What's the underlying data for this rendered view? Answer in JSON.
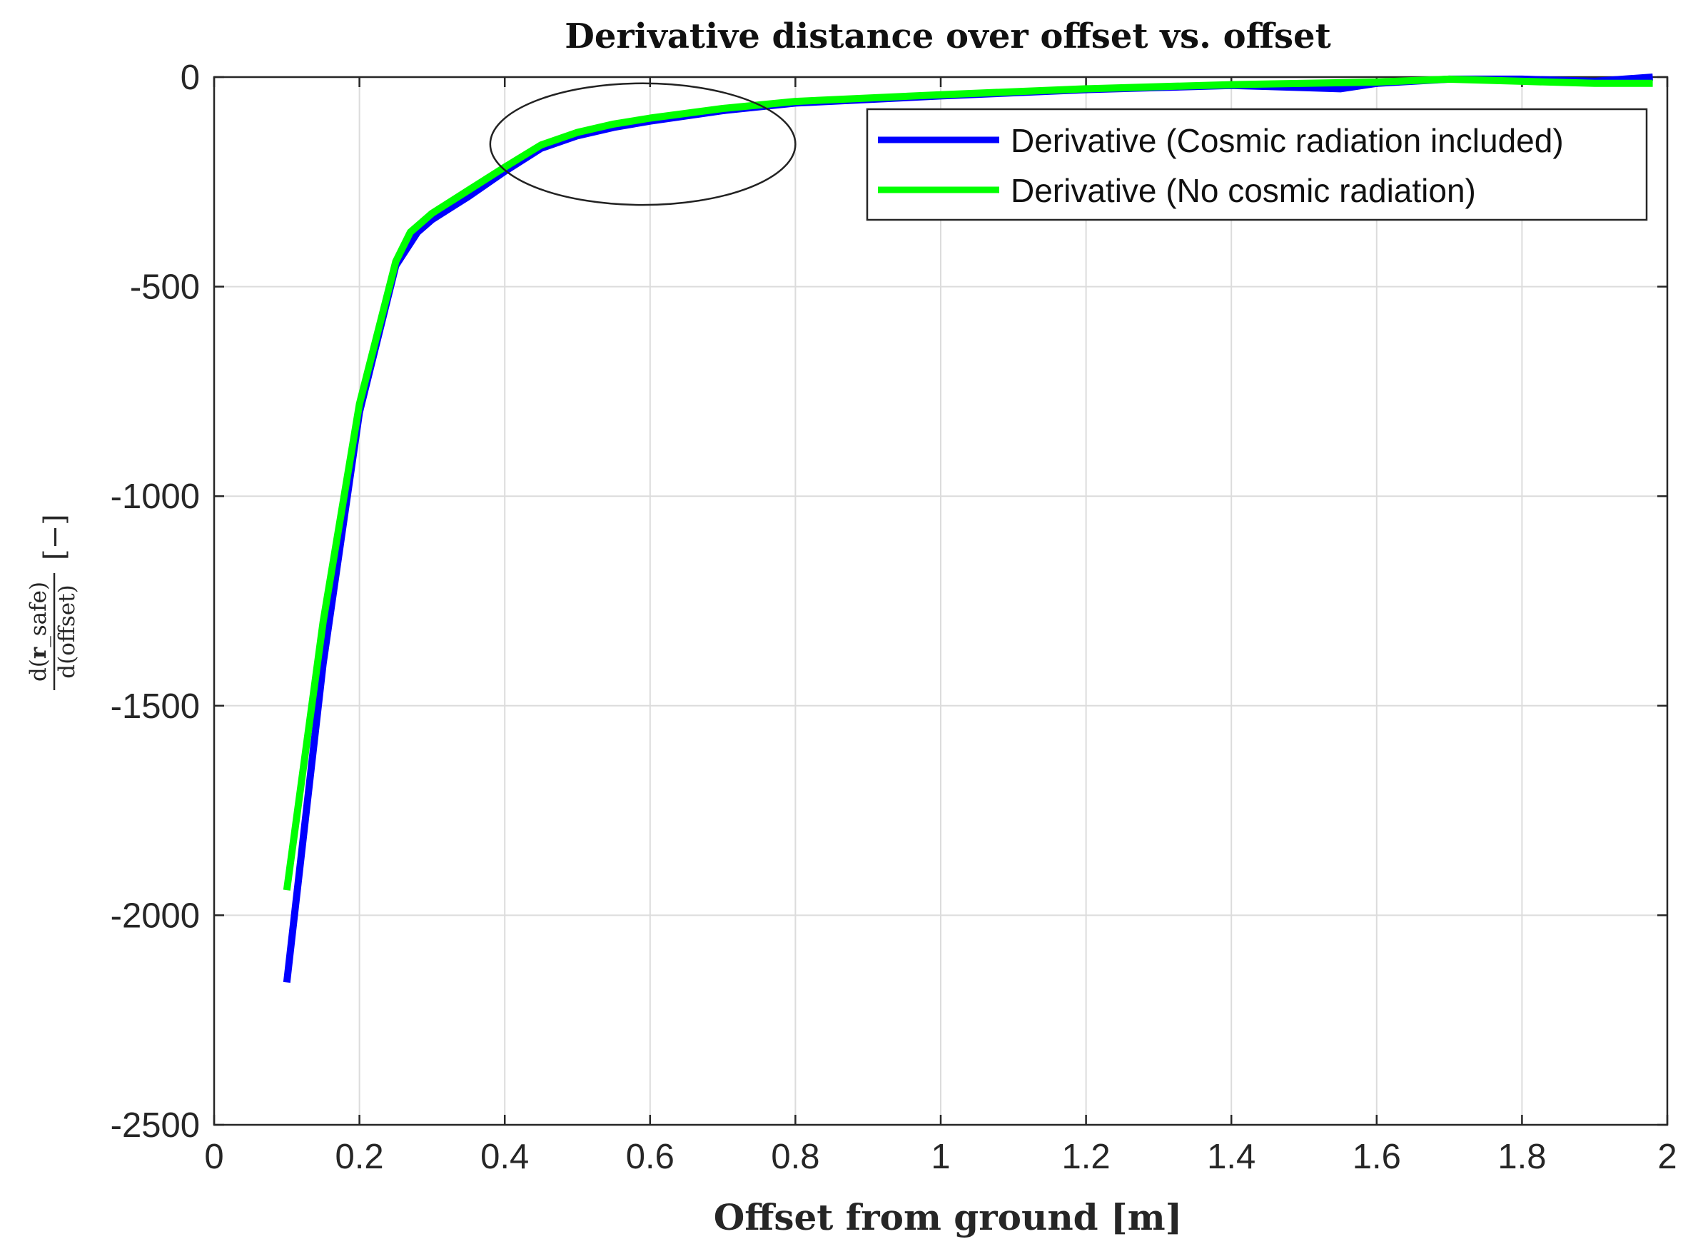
{
  "chart_data": {
    "type": "line",
    "title": "Derivative distance over offset vs. offset",
    "xlabel": "Offset from ground [m]",
    "ylabel": {
      "numerator_prefix": "d(",
      "numerator_main": "r",
      "numerator_suffix": "_safe)",
      "denominator": "d(offset)",
      "unit": "[−]"
    },
    "xlim": [
      0,
      2
    ],
    "ylim": [
      -2500,
      0
    ],
    "xticks": [
      0,
      0.2,
      0.4,
      0.6,
      0.8,
      1,
      1.2,
      1.4,
      1.6,
      1.8,
      2
    ],
    "xtick_labels": [
      "0",
      "0.2",
      "0.4",
      "0.6",
      "0.8",
      "1",
      "1.2",
      "1.4",
      "1.6",
      "1.8",
      "2"
    ],
    "yticks": [
      0,
      -500,
      -1000,
      -1500,
      -2000,
      -2500
    ],
    "ytick_labels": [
      "0",
      "-500",
      "-1000",
      "-1500",
      "-2000",
      "-2500"
    ],
    "grid": true,
    "legend_position": "top-right",
    "series": [
      {
        "name": "Derivative (Cosmic radiation included)",
        "color": "#0000ff",
        "x": [
          0.1,
          0.15,
          0.2,
          0.25,
          0.28,
          0.3,
          0.35,
          0.4,
          0.45,
          0.5,
          0.55,
          0.6,
          0.7,
          0.8,
          1.0,
          1.2,
          1.4,
          1.5,
          1.55,
          1.6,
          1.7,
          1.8,
          1.9,
          1.98
        ],
        "y": [
          -2160,
          -1400,
          -800,
          -450,
          -370,
          -340,
          -285,
          -225,
          -170,
          -140,
          -120,
          -105,
          -80,
          -62,
          -45,
          -30,
          -20,
          -25,
          -28,
          -15,
          -5,
          -5,
          -10,
          0
        ]
      },
      {
        "name": "Derivative (No cosmic radiation)",
        "color": "#00ff00",
        "x": [
          0.1,
          0.15,
          0.2,
          0.25,
          0.27,
          0.3,
          0.35,
          0.4,
          0.45,
          0.5,
          0.55,
          0.6,
          0.7,
          0.8,
          1.0,
          1.2,
          1.4,
          1.6,
          1.7,
          1.8,
          1.9,
          1.98
        ],
        "y": [
          -1940,
          -1300,
          -780,
          -440,
          -370,
          -325,
          -270,
          -215,
          -162,
          -132,
          -112,
          -98,
          -75,
          -58,
          -42,
          -28,
          -18,
          -12,
          -5,
          -10,
          -15,
          -15
        ]
      }
    ],
    "annotations": [
      {
        "type": "ellipse",
        "cx": 0.59,
        "cy": -160,
        "rx": 0.21,
        "ry": 145
      }
    ]
  }
}
